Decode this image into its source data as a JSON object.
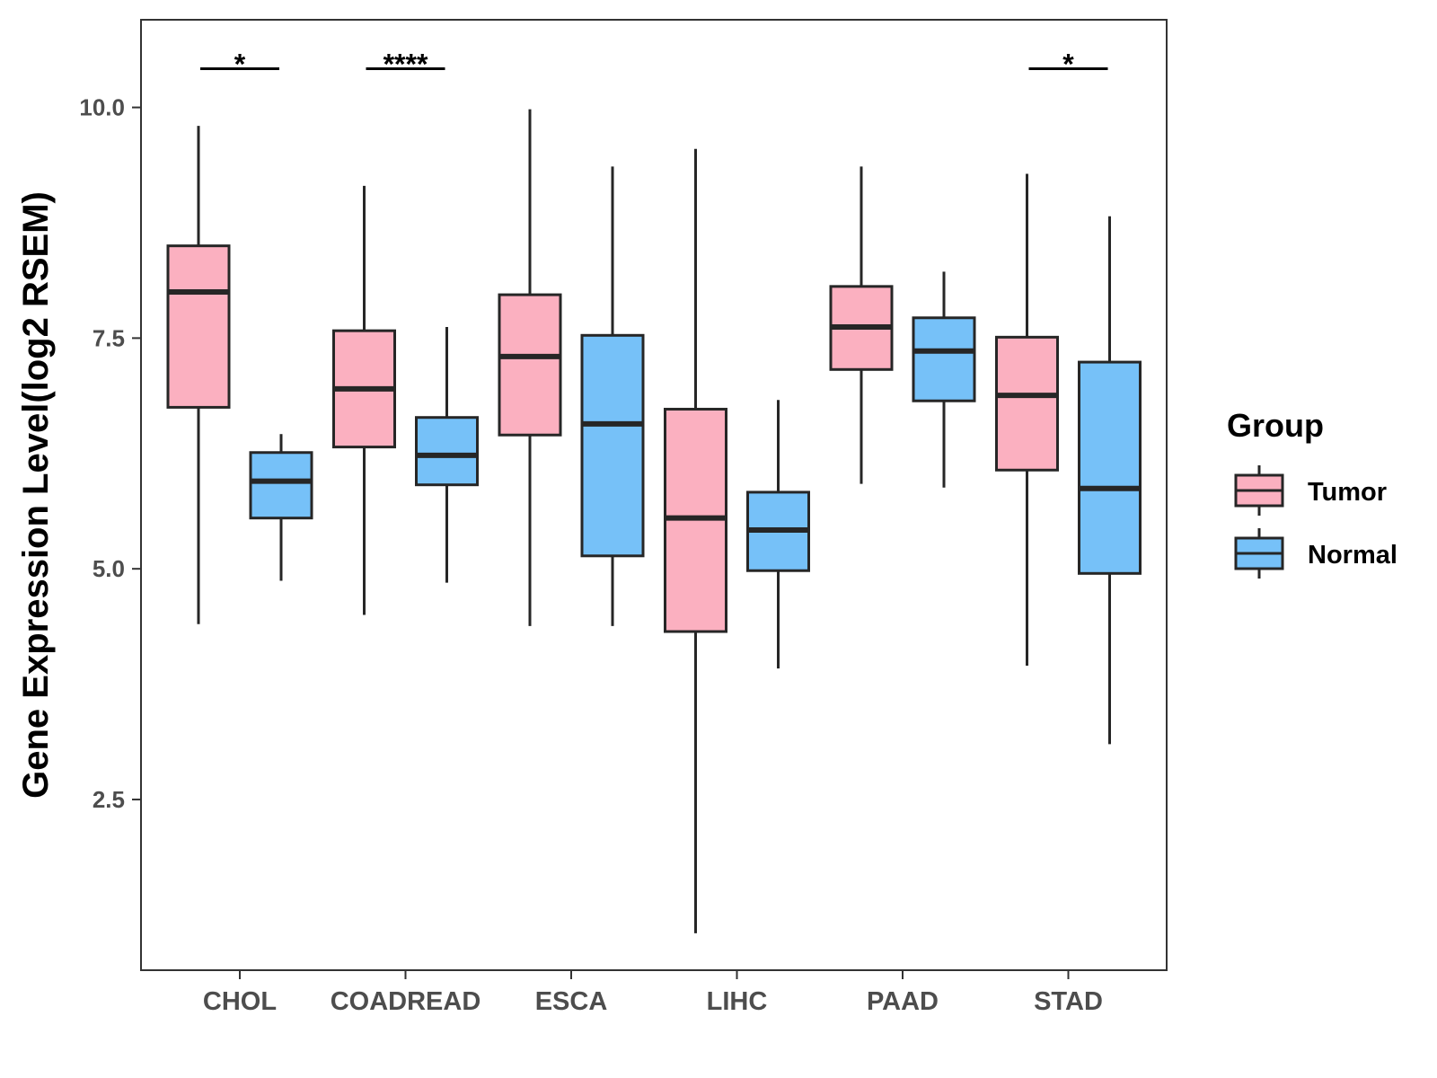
{
  "chart_data": {
    "type": "boxplot",
    "title": "",
    "xlabel": "",
    "ylabel": "Gene Expression Level(log2 RSEM)",
    "ylim": [
      0.65,
      10.95
    ],
    "yticks": [
      "2.5",
      "5.0",
      "7.5",
      "10.0"
    ],
    "ytick_values": [
      2.5,
      5.0,
      7.5,
      10.0
    ],
    "categories": [
      "CHOL",
      "COADREAD",
      "ESCA",
      "LIHC",
      "PAAD",
      "STAD"
    ],
    "legend": {
      "title": "Group",
      "position": "right",
      "entries": [
        "Tumor",
        "Normal"
      ]
    },
    "colors": {
      "Tumor": "#fbb0c0",
      "Normal": "#76c1f8",
      "stroke": "#262626"
    },
    "series": [
      {
        "name": "Tumor",
        "boxes": [
          {
            "category": "CHOL",
            "whisker_low": 4.4,
            "q1": 6.75,
            "median": 8.0,
            "q3": 8.5,
            "whisker_high": 9.8
          },
          {
            "category": "COADREAD",
            "whisker_low": 4.5,
            "q1": 6.32,
            "median": 6.95,
            "q3": 7.58,
            "whisker_high": 9.15
          },
          {
            "category": "ESCA",
            "whisker_low": 4.38,
            "q1": 6.45,
            "median": 7.3,
            "q3": 7.97,
            "whisker_high": 9.98
          },
          {
            "category": "LIHC",
            "whisker_low": 1.05,
            "q1": 4.32,
            "median": 5.55,
            "q3": 6.73,
            "whisker_high": 9.55
          },
          {
            "category": "PAAD",
            "whisker_low": 5.92,
            "q1": 7.16,
            "median": 7.62,
            "q3": 8.06,
            "whisker_high": 9.36
          },
          {
            "category": "STAD",
            "whisker_low": 3.95,
            "q1": 6.07,
            "median": 6.88,
            "q3": 7.51,
            "whisker_high": 9.28
          }
        ]
      },
      {
        "name": "Normal",
        "boxes": [
          {
            "category": "CHOL",
            "whisker_low": 4.87,
            "q1": 5.55,
            "median": 5.95,
            "q3": 6.26,
            "whisker_high": 6.46
          },
          {
            "category": "COADREAD",
            "whisker_low": 4.85,
            "q1": 5.91,
            "median": 6.23,
            "q3": 6.64,
            "whisker_high": 7.62
          },
          {
            "category": "ESCA",
            "whisker_low": 4.38,
            "q1": 5.14,
            "median": 6.57,
            "q3": 7.53,
            "whisker_high": 9.36
          },
          {
            "category": "LIHC",
            "whisker_low": 3.92,
            "q1": 4.98,
            "median": 5.42,
            "q3": 5.83,
            "whisker_high": 6.83
          },
          {
            "category": "PAAD",
            "whisker_low": 5.88,
            "q1": 6.82,
            "median": 7.36,
            "q3": 7.72,
            "whisker_high": 8.22
          },
          {
            "category": "STAD",
            "whisker_low": 3.1,
            "q1": 4.95,
            "median": 5.87,
            "q3": 7.24,
            "whisker_high": 8.82
          }
        ]
      }
    ],
    "significance": [
      {
        "category": "CHOL",
        "label": "*",
        "y": 10.42
      },
      {
        "category": "COADREAD",
        "label": "****",
        "y": 10.42
      },
      {
        "category": "STAD",
        "label": "*",
        "y": 10.42
      }
    ]
  }
}
